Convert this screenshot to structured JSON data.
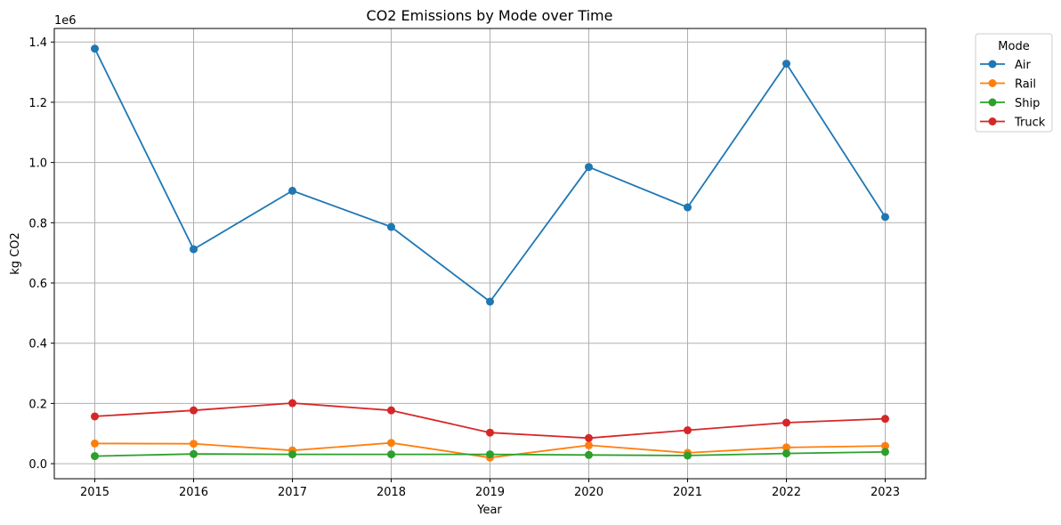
{
  "chart_data": {
    "type": "line",
    "title": "CO2 Emissions by Mode over Time",
    "xlabel": "Year",
    "ylabel": "kg CO2",
    "offset_label": "1e6",
    "x": [
      2015,
      2016,
      2017,
      2018,
      2019,
      2020,
      2021,
      2022,
      2023
    ],
    "x_ticks": [
      "2015",
      "2016",
      "2017",
      "2018",
      "2019",
      "2020",
      "2021",
      "2022",
      "2023"
    ],
    "ylim": [
      -50000,
      1445000
    ],
    "y_ticks": [
      0,
      200000,
      400000,
      600000,
      800000,
      1000000,
      1200000,
      1400000
    ],
    "y_tick_labels": [
      "0.0",
      "0.2",
      "0.4",
      "0.6",
      "0.8",
      "1.0",
      "1.2",
      "1.4"
    ],
    "grid": true,
    "legend": {
      "title": "Mode",
      "placement": "outside upper right"
    },
    "series": [
      {
        "name": "Air",
        "color": "#1f77b4",
        "values": [
          1378000,
          712000,
          906000,
          786000,
          538000,
          985000,
          851000,
          1328000,
          819000
        ]
      },
      {
        "name": "Rail",
        "color": "#ff7f0e",
        "values": [
          67000,
          66000,
          44000,
          69000,
          20000,
          61000,
          36000,
          54000,
          59000
        ]
      },
      {
        "name": "Ship",
        "color": "#2ca02c",
        "values": [
          25000,
          32000,
          31000,
          31000,
          31000,
          29000,
          27000,
          34000,
          39000
        ]
      },
      {
        "name": "Truck",
        "color": "#d62728",
        "values": [
          157000,
          177000,
          201000,
          177000,
          103000,
          85000,
          111000,
          136000,
          149000
        ]
      }
    ]
  }
}
